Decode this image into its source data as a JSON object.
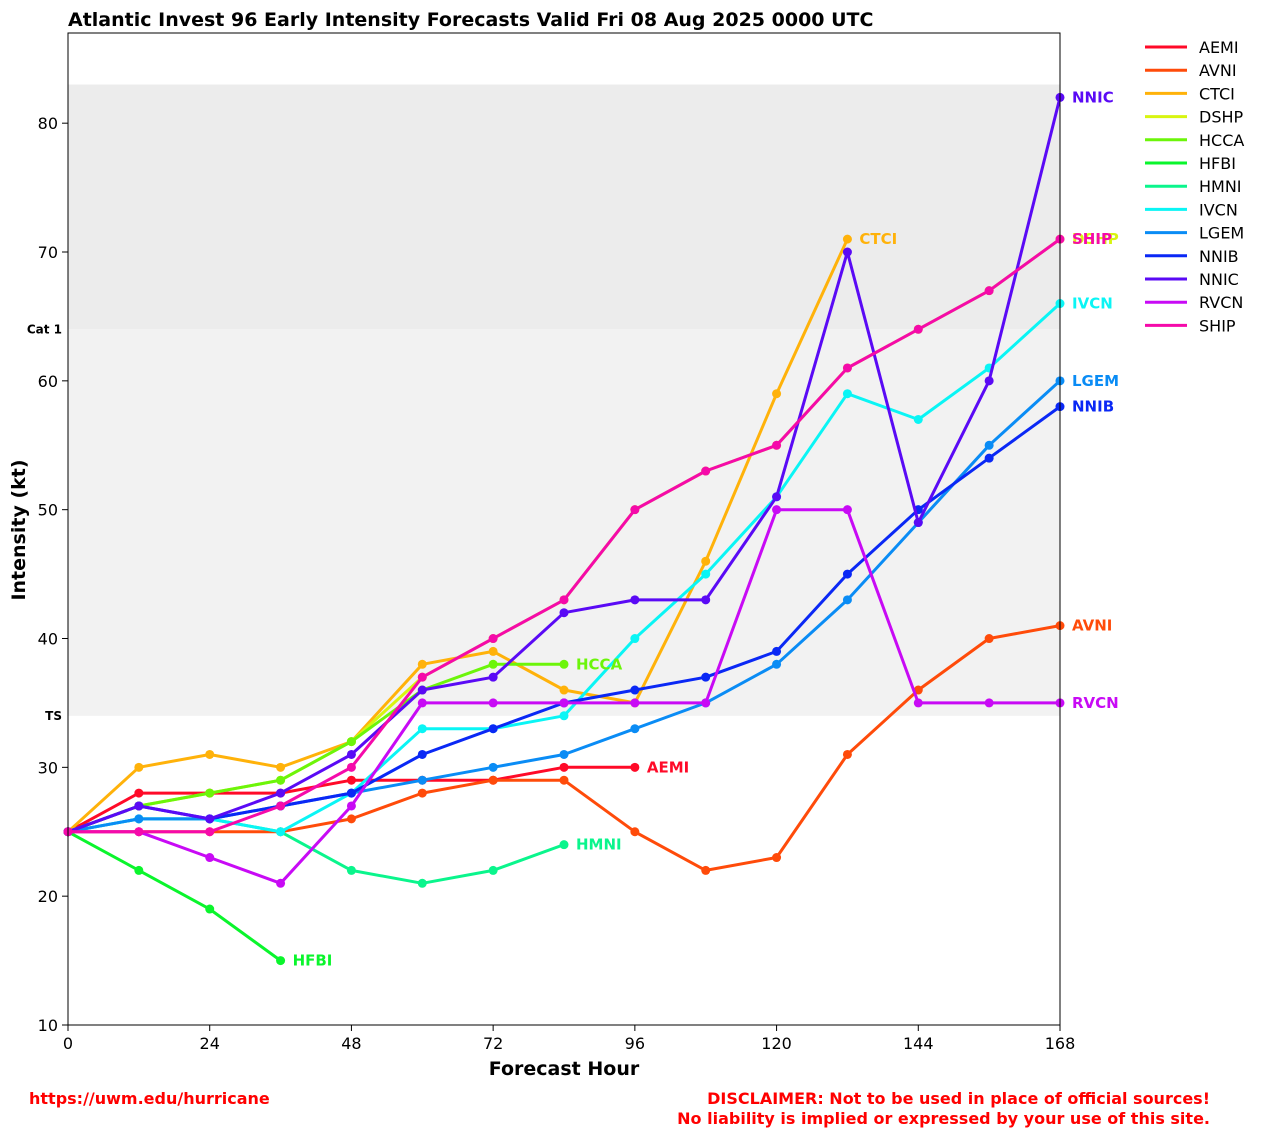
{
  "chart_data": {
    "type": "line",
    "title": "Atlantic Invest 96 Early Intensity Forecasts Valid Fri 08 Aug 2025 0000 UTC",
    "xlabel": "Forecast Hour",
    "ylabel": "Intensity (kt)",
    "xlim": [
      0,
      168
    ],
    "ylim": [
      10,
      87
    ],
    "xticks": [
      0,
      24,
      48,
      72,
      96,
      120,
      144,
      168
    ],
    "yticks": [
      10,
      20,
      30,
      40,
      50,
      60,
      70,
      80
    ],
    "grid": false,
    "legend": "outside-right-top",
    "bands": [
      {
        "label": "TS",
        "from": 34,
        "to": 64,
        "color": "#f2f2f2"
      },
      {
        "label": "Cat 1",
        "from": 64,
        "to": 83,
        "color": "#ececec"
      }
    ],
    "series": [
      {
        "name": "AEMI",
        "color": "#ff0a28",
        "x": [
          0,
          12,
          24,
          36,
          48,
          60,
          72,
          84,
          96
        ],
        "y": [
          25,
          28,
          28,
          28,
          29,
          29,
          29,
          30,
          30
        ]
      },
      {
        "name": "AVNI",
        "color": "#ff4b0a",
        "x": [
          0,
          12,
          24,
          36,
          48,
          60,
          72,
          84,
          96,
          108,
          120,
          132,
          144,
          156,
          168
        ],
        "y": [
          25,
          25,
          25,
          25,
          26,
          28,
          29,
          29,
          25,
          22,
          23,
          31,
          36,
          40,
          41
        ]
      },
      {
        "name": "CTCI",
        "color": "#ffb20a",
        "x": [
          0,
          12,
          24,
          36,
          48,
          60,
          72,
          84,
          96,
          108,
          120,
          132
        ],
        "y": [
          25,
          30,
          31,
          30,
          32,
          38,
          39,
          36,
          35,
          46,
          59,
          71
        ]
      },
      {
        "name": "DSHP",
        "color": "#d8f510",
        "x": [
          0,
          12,
          24,
          36,
          48,
          60,
          72,
          84,
          96,
          108,
          120,
          132,
          144,
          156,
          168
        ],
        "y": [
          25,
          27,
          28,
          29,
          32,
          37,
          40,
          43,
          50,
          53,
          55,
          61,
          64,
          67,
          71
        ]
      },
      {
        "name": "HCCA",
        "color": "#6cf50a",
        "x": [
          0,
          12,
          24,
          36,
          48,
          60,
          72,
          84
        ],
        "y": [
          25,
          27,
          28,
          29,
          32,
          36,
          38,
          38
        ]
      },
      {
        "name": "HFBI",
        "color": "#0af52c",
        "x": [
          0,
          12,
          24,
          36
        ],
        "y": [
          25,
          22,
          19,
          15
        ]
      },
      {
        "name": "HMNI",
        "color": "#0af58c",
        "x": [
          0,
          12,
          24,
          36,
          48,
          60,
          72,
          84
        ],
        "y": [
          25,
          26,
          26,
          25,
          22,
          21,
          22,
          24
        ]
      },
      {
        "name": "IVCN",
        "color": "#0af5f5",
        "x": [
          0,
          12,
          24,
          36,
          48,
          60,
          72,
          84,
          96,
          108,
          120,
          132,
          144,
          156,
          168
        ],
        "y": [
          25,
          26,
          26,
          25,
          28,
          33,
          33,
          34,
          40,
          45,
          51,
          59,
          57,
          61,
          66
        ]
      },
      {
        "name": "LGEM",
        "color": "#0a8cf5",
        "x": [
          0,
          12,
          24,
          36,
          48,
          60,
          72,
          84,
          96,
          108,
          120,
          132,
          144,
          156,
          168
        ],
        "y": [
          25,
          26,
          26,
          27,
          28,
          29,
          30,
          31,
          33,
          35,
          38,
          43,
          49,
          55,
          60
        ]
      },
      {
        "name": "NNIB",
        "color": "#0a28f5",
        "x": [
          0,
          12,
          24,
          36,
          48,
          60,
          72,
          84,
          96,
          108,
          120,
          132,
          144,
          156,
          168
        ],
        "y": [
          25,
          27,
          26,
          27,
          28,
          31,
          33,
          35,
          36,
          37,
          39,
          45,
          50,
          54,
          58
        ]
      },
      {
        "name": "NNIC",
        "color": "#5a0af5",
        "x": [
          0,
          12,
          24,
          36,
          48,
          60,
          72,
          84,
          96,
          108,
          120,
          132,
          144,
          156,
          168
        ],
        "y": [
          25,
          27,
          26,
          28,
          31,
          36,
          37,
          42,
          43,
          43,
          51,
          70,
          49,
          60,
          82
        ]
      },
      {
        "name": "RVCN",
        "color": "#c80af5",
        "x": [
          0,
          12,
          24,
          36,
          48,
          60,
          72,
          84,
          96,
          108,
          120,
          132,
          144,
          156,
          168
        ],
        "y": [
          25,
          25,
          23,
          21,
          27,
          35,
          35,
          35,
          35,
          35,
          50,
          50,
          35,
          35,
          35
        ]
      },
      {
        "name": "SHIP",
        "color": "#f50aaa",
        "x": [
          0,
          12,
          24,
          36,
          48,
          60,
          72,
          84,
          96,
          108,
          120,
          132,
          144,
          156,
          168
        ],
        "y": [
          25,
          25,
          25,
          27,
          30,
          37,
          40,
          43,
          50,
          53,
          55,
          61,
          64,
          67,
          71
        ]
      }
    ]
  },
  "footer": {
    "url": "https://uwm.edu/hurricane",
    "disclaimer_line1": "DISCLAIMER: Not to be used in place of official sources!",
    "disclaimer_line2": "No liability is implied or expressed by your use of this site."
  }
}
